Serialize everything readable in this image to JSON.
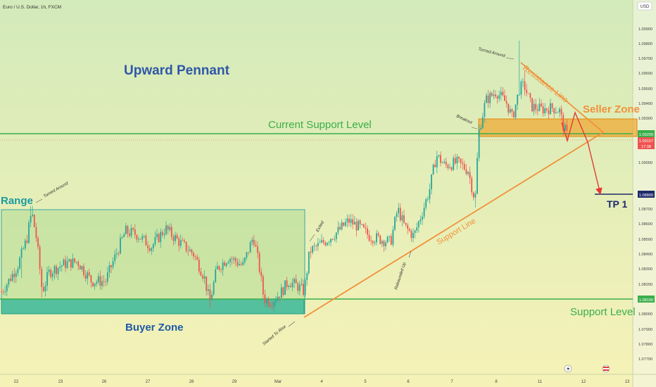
{
  "header": {
    "symbol_title": "Euro / U.S. Dollar, 1h, FXCM",
    "currency_badge": "USD"
  },
  "chart_data": {
    "type": "candlestick",
    "title": "Upward Pennant",
    "instrument": "Euro / U.S. Dollar",
    "timeframe": "1h",
    "source": "FXCM",
    "ylim": [
      1.077,
      1.1
    ],
    "y_ticks": [
      "1.09900",
      "1.09800",
      "1.09700",
      "1.09600",
      "1.09500",
      "1.09400",
      "1.09300",
      "1.09000",
      "1.08700",
      "1.08600",
      "1.08500",
      "1.08400",
      "1.08300",
      "1.08200",
      "1.08000",
      "1.07900",
      "1.07800",
      "1.07700"
    ],
    "x_ticks": [
      "22",
      "23",
      "26",
      "27",
      "28",
      "29",
      "Mar",
      "4",
      "5",
      "6",
      "7",
      "8",
      "11",
      "12",
      "13"
    ],
    "price_labels": [
      {
        "id": "support_top",
        "text": "1.09200",
        "value": 1.092,
        "style": "green"
      },
      {
        "id": "current_price",
        "text": "1.09157",
        "value": 1.09157,
        "style": "red"
      },
      {
        "id": "countdown",
        "text": "17:38",
        "value": 1.0912,
        "style": "red"
      },
      {
        "id": "tp",
        "text": "1.08800",
        "value": 1.088,
        "style": "navy"
      },
      {
        "id": "support_bottom",
        "text": "1.08100",
        "value": 1.081,
        "style": "green"
      }
    ],
    "levels": [
      {
        "name": "Current Support Level",
        "value": 1.092,
        "color": "#3aae4a"
      },
      {
        "name": "Support Level",
        "value": 1.081,
        "color": "#3aae4a"
      },
      {
        "name": "TP 1",
        "value": 1.088,
        "color": "#1e2a6b"
      }
    ],
    "zones": [
      {
        "name": "Range",
        "color": "#3fae5f"
      },
      {
        "name": "Buyer Zone",
        "color": "#2bb39b"
      },
      {
        "name": "Seller Zone",
        "color": "#f0a020"
      }
    ],
    "trendlines": [
      {
        "name": "Support Line",
        "color": "#f0913a"
      },
      {
        "name": "Resistance Line",
        "color": "#f0913a"
      }
    ],
    "annotations": [
      "Turned Around",
      "Exited",
      "Started To Rise",
      "Rebounded Up",
      "Breakout",
      "Turned Around"
    ],
    "colors": {
      "up": "#26a69a",
      "down": "#ef5350",
      "bg_top": "#d3eaba",
      "bg_bottom": "#f6f2b7"
    }
  }
}
